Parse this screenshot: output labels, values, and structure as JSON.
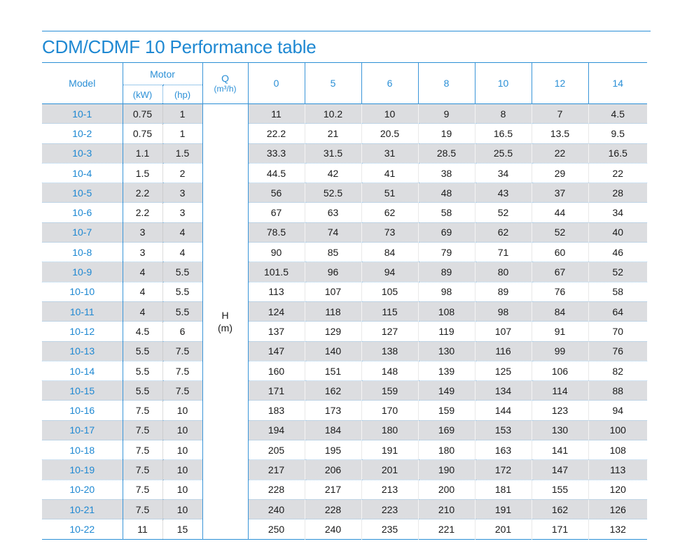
{
  "title": "CDM/CDMF 10 Performance table",
  "header": {
    "model": "Model",
    "motor": "Motor",
    "kw": "(kW)",
    "hp": "(hp)",
    "q_line1": "Q",
    "q_line2": "(m³/h)",
    "flows": [
      "0",
      "5",
      "6",
      "8",
      "10",
      "12",
      "14"
    ]
  },
  "h_label": {
    "line1": "H",
    "line2": "(m)"
  },
  "rows": [
    {
      "model": "10-1",
      "kw": "0.75",
      "hp": "1",
      "h": [
        "11",
        "10.2",
        "10",
        "9",
        "8",
        "7",
        "4.5"
      ]
    },
    {
      "model": "10-2",
      "kw": "0.75",
      "hp": "1",
      "h": [
        "22.2",
        "21",
        "20.5",
        "19",
        "16.5",
        "13.5",
        "9.5"
      ]
    },
    {
      "model": "10-3",
      "kw": "1.1",
      "hp": "1.5",
      "h": [
        "33.3",
        "31.5",
        "31",
        "28.5",
        "25.5",
        "22",
        "16.5"
      ]
    },
    {
      "model": "10-4",
      "kw": "1.5",
      "hp": "2",
      "h": [
        "44.5",
        "42",
        "41",
        "38",
        "34",
        "29",
        "22"
      ]
    },
    {
      "model": "10-5",
      "kw": "2.2",
      "hp": "3",
      "h": [
        "56",
        "52.5",
        "51",
        "48",
        "43",
        "37",
        "28"
      ]
    },
    {
      "model": "10-6",
      "kw": "2.2",
      "hp": "3",
      "h": [
        "67",
        "63",
        "62",
        "58",
        "52",
        "44",
        "34"
      ]
    },
    {
      "model": "10-7",
      "kw": "3",
      "hp": "4",
      "h": [
        "78.5",
        "74",
        "73",
        "69",
        "62",
        "52",
        "40"
      ]
    },
    {
      "model": "10-8",
      "kw": "3",
      "hp": "4",
      "h": [
        "90",
        "85",
        "84",
        "79",
        "71",
        "60",
        "46"
      ]
    },
    {
      "model": "10-9",
      "kw": "4",
      "hp": "5.5",
      "h": [
        "101.5",
        "96",
        "94",
        "89",
        "80",
        "67",
        "52"
      ]
    },
    {
      "model": "10-10",
      "kw": "4",
      "hp": "5.5",
      "h": [
        "113",
        "107",
        "105",
        "98",
        "89",
        "76",
        "58"
      ]
    },
    {
      "model": "10-11",
      "kw": "4",
      "hp": "5.5",
      "h": [
        "124",
        "118",
        "115",
        "108",
        "98",
        "84",
        "64"
      ]
    },
    {
      "model": "10-12",
      "kw": "4.5",
      "hp": "6",
      "h": [
        "137",
        "129",
        "127",
        "119",
        "107",
        "91",
        "70"
      ]
    },
    {
      "model": "10-13",
      "kw": "5.5",
      "hp": "7.5",
      "h": [
        "147",
        "140",
        "138",
        "130",
        "116",
        "99",
        "76"
      ]
    },
    {
      "model": "10-14",
      "kw": "5.5",
      "hp": "7.5",
      "h": [
        "160",
        "151",
        "148",
        "139",
        "125",
        "106",
        "82"
      ]
    },
    {
      "model": "10-15",
      "kw": "5.5",
      "hp": "7.5",
      "h": [
        "171",
        "162",
        "159",
        "149",
        "134",
        "114",
        "88"
      ]
    },
    {
      "model": "10-16",
      "kw": "7.5",
      "hp": "10",
      "h": [
        "183",
        "173",
        "170",
        "159",
        "144",
        "123",
        "94"
      ]
    },
    {
      "model": "10-17",
      "kw": "7.5",
      "hp": "10",
      "h": [
        "194",
        "184",
        "180",
        "169",
        "153",
        "130",
        "100"
      ]
    },
    {
      "model": "10-18",
      "kw": "7.5",
      "hp": "10",
      "h": [
        "205",
        "195",
        "191",
        "180",
        "163",
        "141",
        "108"
      ]
    },
    {
      "model": "10-19",
      "kw": "7.5",
      "hp": "10",
      "h": [
        "217",
        "206",
        "201",
        "190",
        "172",
        "147",
        "113"
      ]
    },
    {
      "model": "10-20",
      "kw": "7.5",
      "hp": "10",
      "h": [
        "228",
        "217",
        "213",
        "200",
        "181",
        "155",
        "120"
      ]
    },
    {
      "model": "10-21",
      "kw": "7.5",
      "hp": "10",
      "h": [
        "240",
        "228",
        "223",
        "210",
        "191",
        "162",
        "126"
      ]
    },
    {
      "model": "10-22",
      "kw": "11",
      "hp": "15",
      "h": [
        "250",
        "240",
        "235",
        "221",
        "201",
        "171",
        "132"
      ]
    }
  ],
  "colors": {
    "accent": "#1e88d2",
    "shade": "#dcdde0"
  }
}
